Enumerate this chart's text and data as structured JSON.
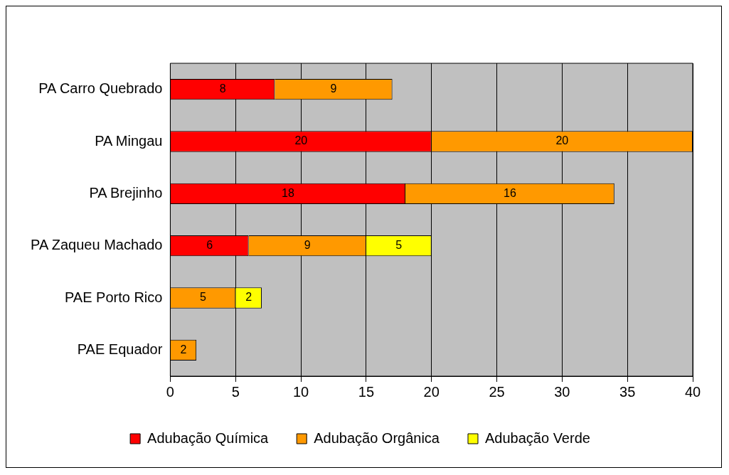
{
  "chart_data": {
    "type": "bar",
    "orientation": "horizontal",
    "stacked": true,
    "categories": [
      "PA Carro Quebrado",
      "PA Mingau",
      "PA Brejinho",
      "PA Zaqueu Machado",
      "PAE Porto Rico",
      "PAE Equador"
    ],
    "series": [
      {
        "name": "Adubação Química",
        "color": "#ff0000",
        "values": [
          8,
          20,
          18,
          6,
          null,
          null
        ]
      },
      {
        "name": "Adubação Orgânica",
        "color": "#ff9900",
        "values": [
          9,
          20,
          16,
          9,
          5,
          2
        ]
      },
      {
        "name": "Adubação Verde",
        "color": "#ffff00",
        "values": [
          null,
          null,
          null,
          5,
          2,
          null
        ]
      }
    ],
    "xlim": [
      0,
      40
    ],
    "xticks": [
      0,
      5,
      10,
      15,
      20,
      25,
      30,
      35,
      40
    ],
    "grid": "x",
    "legend": "bottom",
    "data_labels": true
  }
}
